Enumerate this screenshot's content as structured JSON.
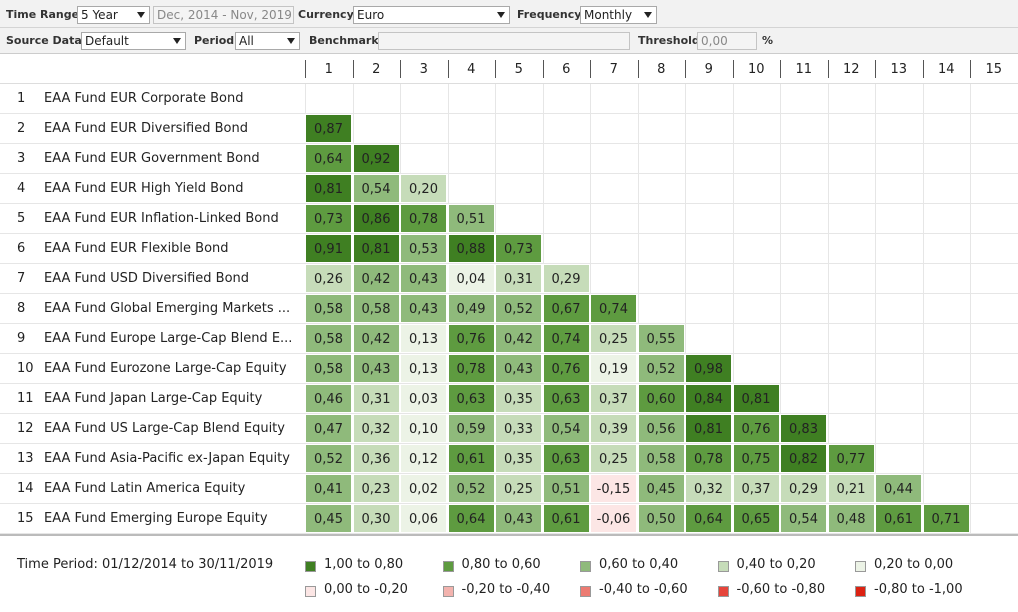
{
  "toolbar": {
    "time_range": {
      "label": "Time Range",
      "value": "5 Year"
    },
    "date_range": "Dec, 2014 - Nov, 2019",
    "currency": {
      "label": "Currency",
      "value": "Euro"
    },
    "frequency": {
      "label": "Frequency",
      "value": "Monthly"
    },
    "source_data": {
      "label": "Source Data",
      "value": "Default"
    },
    "period": {
      "label": "Period",
      "value": "All"
    },
    "benchmark": {
      "label": "Benchmark"
    },
    "threshold": {
      "label": "Threshold",
      "value": "0,00",
      "unit": "%"
    }
  },
  "table": {
    "columns": [
      1,
      2,
      3,
      4,
      5,
      6,
      7,
      8,
      9,
      10,
      11,
      12,
      13,
      14,
      15
    ],
    "rows": [
      {
        "index": 1,
        "label": "EAA Fund EUR Corporate Bond",
        "values": []
      },
      {
        "index": 2,
        "label": "EAA Fund EUR Diversified Bond",
        "values": [
          "0,87"
        ]
      },
      {
        "index": 3,
        "label": "EAA Fund EUR Government Bond",
        "values": [
          "0,64",
          "0,92"
        ]
      },
      {
        "index": 4,
        "label": "EAA Fund EUR High Yield Bond",
        "values": [
          "0,81",
          "0,54",
          "0,20"
        ]
      },
      {
        "index": 5,
        "label": "EAA Fund EUR Inflation-Linked Bond",
        "values": [
          "0,73",
          "0,86",
          "0,78",
          "0,51"
        ]
      },
      {
        "index": 6,
        "label": "EAA Fund EUR Flexible Bond",
        "values": [
          "0,91",
          "0,81",
          "0,53",
          "0,88",
          "0,73"
        ]
      },
      {
        "index": 7,
        "label": "EAA Fund USD Diversified Bond",
        "values": [
          "0,26",
          "0,42",
          "0,43",
          "0,04",
          "0,31",
          "0,29"
        ]
      },
      {
        "index": 8,
        "label": "EAA Fund Global Emerging Markets ...",
        "values": [
          "0,58",
          "0,58",
          "0,43",
          "0,49",
          "0,52",
          "0,67",
          "0,74"
        ]
      },
      {
        "index": 9,
        "label": "EAA Fund Europe Large-Cap Blend E...",
        "values": [
          "0,58",
          "0,42",
          "0,13",
          "0,76",
          "0,42",
          "0,74",
          "0,25",
          "0,55"
        ]
      },
      {
        "index": 10,
        "label": "EAA Fund Eurozone Large-Cap Equity",
        "values": [
          "0,58",
          "0,43",
          "0,13",
          "0,78",
          "0,43",
          "0,76",
          "0,19",
          "0,52",
          "0,98"
        ]
      },
      {
        "index": 11,
        "label": "EAA Fund Japan Large-Cap Equity",
        "values": [
          "0,46",
          "0,31",
          "0,03",
          "0,63",
          "0,35",
          "0,63",
          "0,37",
          "0,60",
          "0,84",
          "0,81"
        ]
      },
      {
        "index": 12,
        "label": "EAA Fund US Large-Cap Blend Equity",
        "values": [
          "0,47",
          "0,32",
          "0,10",
          "0,59",
          "0,33",
          "0,54",
          "0,39",
          "0,56",
          "0,81",
          "0,76",
          "0,83"
        ]
      },
      {
        "index": 13,
        "label": "EAA Fund Asia-Pacific ex-Japan Equity",
        "values": [
          "0,52",
          "0,36",
          "0,12",
          "0,61",
          "0,35",
          "0,63",
          "0,25",
          "0,58",
          "0,78",
          "0,75",
          "0,82",
          "0,77"
        ]
      },
      {
        "index": 14,
        "label": "EAA Fund Latin America Equity",
        "values": [
          "0,41",
          "0,23",
          "0,02",
          "0,52",
          "0,25",
          "0,51",
          "-0,15",
          "0,45",
          "0,32",
          "0,37",
          "0,29",
          "0,21",
          "0,44"
        ]
      },
      {
        "index": 15,
        "label": "EAA Fund Emerging Europe Equity",
        "values": [
          "0,45",
          "0,30",
          "0,06",
          "0,64",
          "0,43",
          "0,61",
          "-0,06",
          "0,50",
          "0,64",
          "0,65",
          "0,54",
          "0,48",
          "0,61",
          "0,71"
        ]
      }
    ]
  },
  "legend": {
    "title": "Time Period: 01/12/2014 to 30/11/2019",
    "items": [
      {
        "label": "1,00 to 0,80",
        "color": "#3f7f22"
      },
      {
        "label": "0,80 to 0,60",
        "color": "#5e9b40"
      },
      {
        "label": "0,60 to 0,40",
        "color": "#8fba7b"
      },
      {
        "label": "0,40 to 0,20",
        "color": "#c6dcb9"
      },
      {
        "label": "0,20 to 0,00",
        "color": "#ecf3e6"
      },
      {
        "label": "0,00 to -0,20",
        "color": "#fce6e5"
      },
      {
        "label": "-0,20 to -0,40",
        "color": "#f3b3ae"
      },
      {
        "label": "-0,40 to -0,60",
        "color": "#ec7b72"
      },
      {
        "label": "-0,60 to -0,80",
        "color": "#e6453b"
      },
      {
        "label": "-0,80 to -1,00",
        "color": "#dc2212"
      }
    ]
  }
}
